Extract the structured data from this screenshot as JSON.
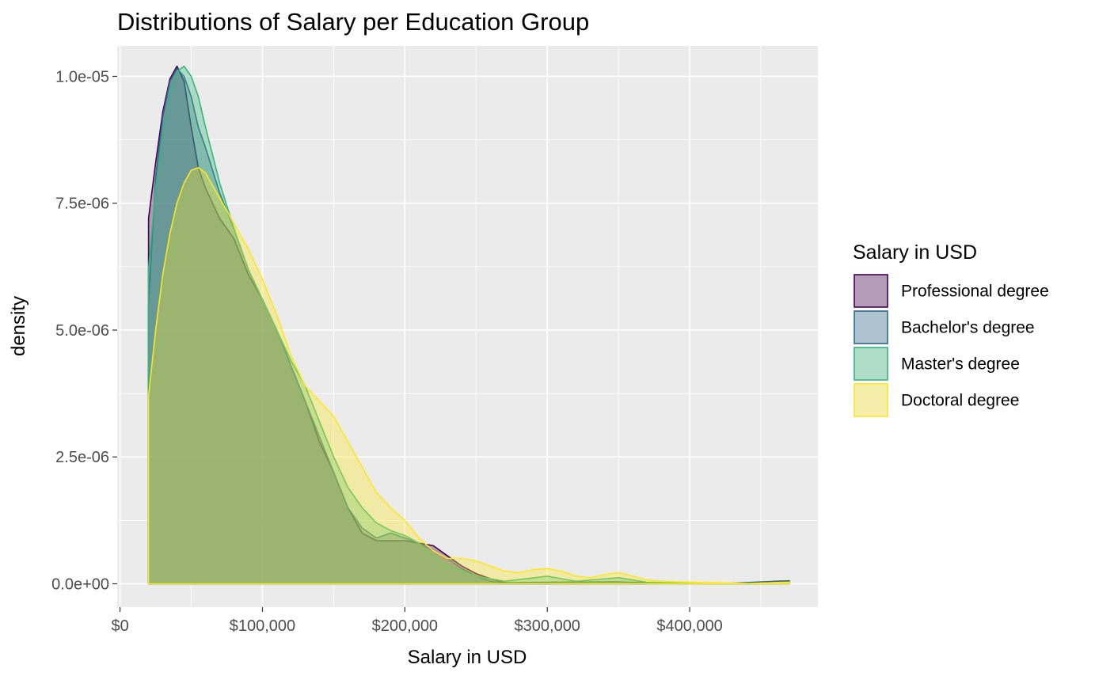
{
  "chart_data": {
    "type": "area",
    "title": "Distributions of Salary per Education Group",
    "xlabel": "Salary in USD",
    "ylabel": "density",
    "xlim": [
      -2000,
      490000
    ],
    "ylim": [
      -4.6e-07,
      1.06e-05
    ],
    "x_ticks": [
      0,
      100000,
      200000,
      300000,
      400000
    ],
    "x_tick_labels": [
      "$0",
      "$100,000",
      "$200,000",
      "$300,000",
      "$400,000"
    ],
    "y_ticks": [
      0,
      2.5e-06,
      5e-06,
      7.5e-06,
      1e-05
    ],
    "y_tick_labels": [
      "0.0e+00",
      "2.5e-06",
      "5.0e-06",
      "7.5e-06",
      "1.0e-05"
    ],
    "grid": true,
    "legend": {
      "title": "Salary in USD",
      "position": "right"
    },
    "series": [
      {
        "name": "Professional degree",
        "color": "#440154",
        "points": [
          [
            20000,
            7.2e-06
          ],
          [
            25000,
            8.3e-06
          ],
          [
            30000,
            9.3e-06
          ],
          [
            35000,
            9.95e-06
          ],
          [
            40000,
            1.02e-05
          ],
          [
            45000,
            9.9e-06
          ],
          [
            50000,
            9e-06
          ],
          [
            55000,
            8.2e-06
          ],
          [
            60000,
            7.8e-06
          ],
          [
            70000,
            7.2e-06
          ],
          [
            80000,
            6.8e-06
          ],
          [
            90000,
            6.1e-06
          ],
          [
            100000,
            5.6e-06
          ],
          [
            110000,
            5e-06
          ],
          [
            120000,
            4.3e-06
          ],
          [
            130000,
            3.6e-06
          ],
          [
            140000,
            2.8e-06
          ],
          [
            150000,
            2.2e-06
          ],
          [
            160000,
            1.5e-06
          ],
          [
            170000,
            1e-06
          ],
          [
            180000,
            8.5e-07
          ],
          [
            190000,
            8.5e-07
          ],
          [
            200000,
            8.5e-07
          ],
          [
            210000,
            8e-07
          ],
          [
            220000,
            7.5e-07
          ],
          [
            230000,
            5.5e-07
          ],
          [
            240000,
            3.5e-07
          ],
          [
            250000,
            2e-07
          ],
          [
            260000,
            1e-07
          ],
          [
            270000,
            3e-08
          ],
          [
            275000,
            0.0
          ],
          [
            300000,
            0.0
          ],
          [
            320000,
            0.0
          ],
          [
            340000,
            0.0
          ],
          [
            360000,
            0.0
          ],
          [
            370000,
            0.0
          ]
        ]
      },
      {
        "name": "Bachelor's degree",
        "color": "#31688e",
        "points": [
          [
            20000,
            5.5e-06
          ],
          [
            25000,
            8e-06
          ],
          [
            30000,
            9.2e-06
          ],
          [
            35000,
            9.9e-06
          ],
          [
            40000,
            1.015e-05
          ],
          [
            45000,
            1e-05
          ],
          [
            50000,
            9.6e-06
          ],
          [
            55000,
            9e-06
          ],
          [
            60000,
            8.6e-06
          ],
          [
            70000,
            7.7e-06
          ],
          [
            80000,
            7e-06
          ],
          [
            90000,
            6.2e-06
          ],
          [
            100000,
            5.6e-06
          ],
          [
            110000,
            5e-06
          ],
          [
            120000,
            4.3e-06
          ],
          [
            130000,
            3.6e-06
          ],
          [
            140000,
            2.9e-06
          ],
          [
            150000,
            2.2e-06
          ],
          [
            160000,
            1.5e-06
          ],
          [
            170000,
            1.1e-06
          ],
          [
            180000,
            9e-07
          ],
          [
            190000,
            1e-06
          ],
          [
            200000,
            9e-07
          ],
          [
            210000,
            8e-07
          ],
          [
            220000,
            6.5e-07
          ],
          [
            230000,
            5e-07
          ],
          [
            240000,
            3e-07
          ],
          [
            250000,
            1.5e-07
          ],
          [
            260000,
            5e-08
          ],
          [
            270000,
            2e-08
          ],
          [
            300000,
            3e-08
          ],
          [
            350000,
            4e-08
          ],
          [
            380000,
            1e-08
          ],
          [
            420000,
            0.0
          ],
          [
            460000,
            5e-08
          ],
          [
            470000,
            6e-08
          ]
        ]
      },
      {
        "name": "Master's degree",
        "color": "#35b779",
        "points": [
          [
            20000,
            6.2e-06
          ],
          [
            25000,
            7.8e-06
          ],
          [
            30000,
            8.9e-06
          ],
          [
            35000,
            9.7e-06
          ],
          [
            40000,
            1.01e-05
          ],
          [
            45000,
            1.02e-05
          ],
          [
            50000,
            1e-05
          ],
          [
            55000,
            9.6e-06
          ],
          [
            60000,
            9e-06
          ],
          [
            70000,
            7.9e-06
          ],
          [
            80000,
            7e-06
          ],
          [
            90000,
            6.2e-06
          ],
          [
            100000,
            5.6e-06
          ],
          [
            110000,
            5e-06
          ],
          [
            120000,
            4.4e-06
          ],
          [
            130000,
            3.9e-06
          ],
          [
            140000,
            3.2e-06
          ],
          [
            150000,
            2.5e-06
          ],
          [
            160000,
            1.9e-06
          ],
          [
            170000,
            1.5e-06
          ],
          [
            180000,
            1.2e-06
          ],
          [
            190000,
            1.05e-06
          ],
          [
            200000,
            9.5e-07
          ],
          [
            210000,
            8e-07
          ],
          [
            220000,
            5.5e-07
          ],
          [
            230000,
            3.5e-07
          ],
          [
            240000,
            2.5e-07
          ],
          [
            250000,
            1.5e-07
          ],
          [
            270000,
            5e-08
          ],
          [
            300000,
            1.5e-07
          ],
          [
            320000,
            5e-08
          ],
          [
            350000,
            1.2e-07
          ],
          [
            370000,
            3e-08
          ],
          [
            400000,
            1e-08
          ],
          [
            440000,
            1e-08
          ],
          [
            470000,
            2e-08
          ]
        ]
      },
      {
        "name": "Doctoral degree",
        "color": "#fde725",
        "points": [
          [
            20000,
            3.7e-06
          ],
          [
            25000,
            5e-06
          ],
          [
            30000,
            6.1e-06
          ],
          [
            35000,
            6.9e-06
          ],
          [
            40000,
            7.5e-06
          ],
          [
            45000,
            7.9e-06
          ],
          [
            50000,
            8.15e-06
          ],
          [
            55000,
            8.2e-06
          ],
          [
            60000,
            8.1e-06
          ],
          [
            70000,
            7.6e-06
          ],
          [
            80000,
            7.1e-06
          ],
          [
            90000,
            6.6e-06
          ],
          [
            100000,
            6e-06
          ],
          [
            110000,
            5.3e-06
          ],
          [
            120000,
            4.5e-06
          ],
          [
            130000,
            3.9e-06
          ],
          [
            140000,
            3.6e-06
          ],
          [
            150000,
            3.3e-06
          ],
          [
            160000,
            2.8e-06
          ],
          [
            170000,
            2.3e-06
          ],
          [
            180000,
            1.8e-06
          ],
          [
            190000,
            1.5e-06
          ],
          [
            200000,
            1.25e-06
          ],
          [
            210000,
            9e-07
          ],
          [
            220000,
            6.5e-07
          ],
          [
            230000,
            5e-07
          ],
          [
            240000,
            5e-07
          ],
          [
            250000,
            4.5e-07
          ],
          [
            260000,
            3.5e-07
          ],
          [
            270000,
            2.5e-07
          ],
          [
            280000,
            2.2e-07
          ],
          [
            290000,
            2.8e-07
          ],
          [
            300000,
            3e-07
          ],
          [
            310000,
            2.5e-07
          ],
          [
            320000,
            1.5e-07
          ],
          [
            330000,
            1.2e-07
          ],
          [
            340000,
            1.8e-07
          ],
          [
            350000,
            2.2e-07
          ],
          [
            360000,
            1.5e-07
          ],
          [
            370000,
            8e-08
          ],
          [
            380000,
            5e-08
          ],
          [
            400000,
            3e-08
          ],
          [
            420000,
            2e-08
          ],
          [
            440000,
            5e-09
          ],
          [
            470000,
            3e-08
          ]
        ]
      }
    ]
  }
}
